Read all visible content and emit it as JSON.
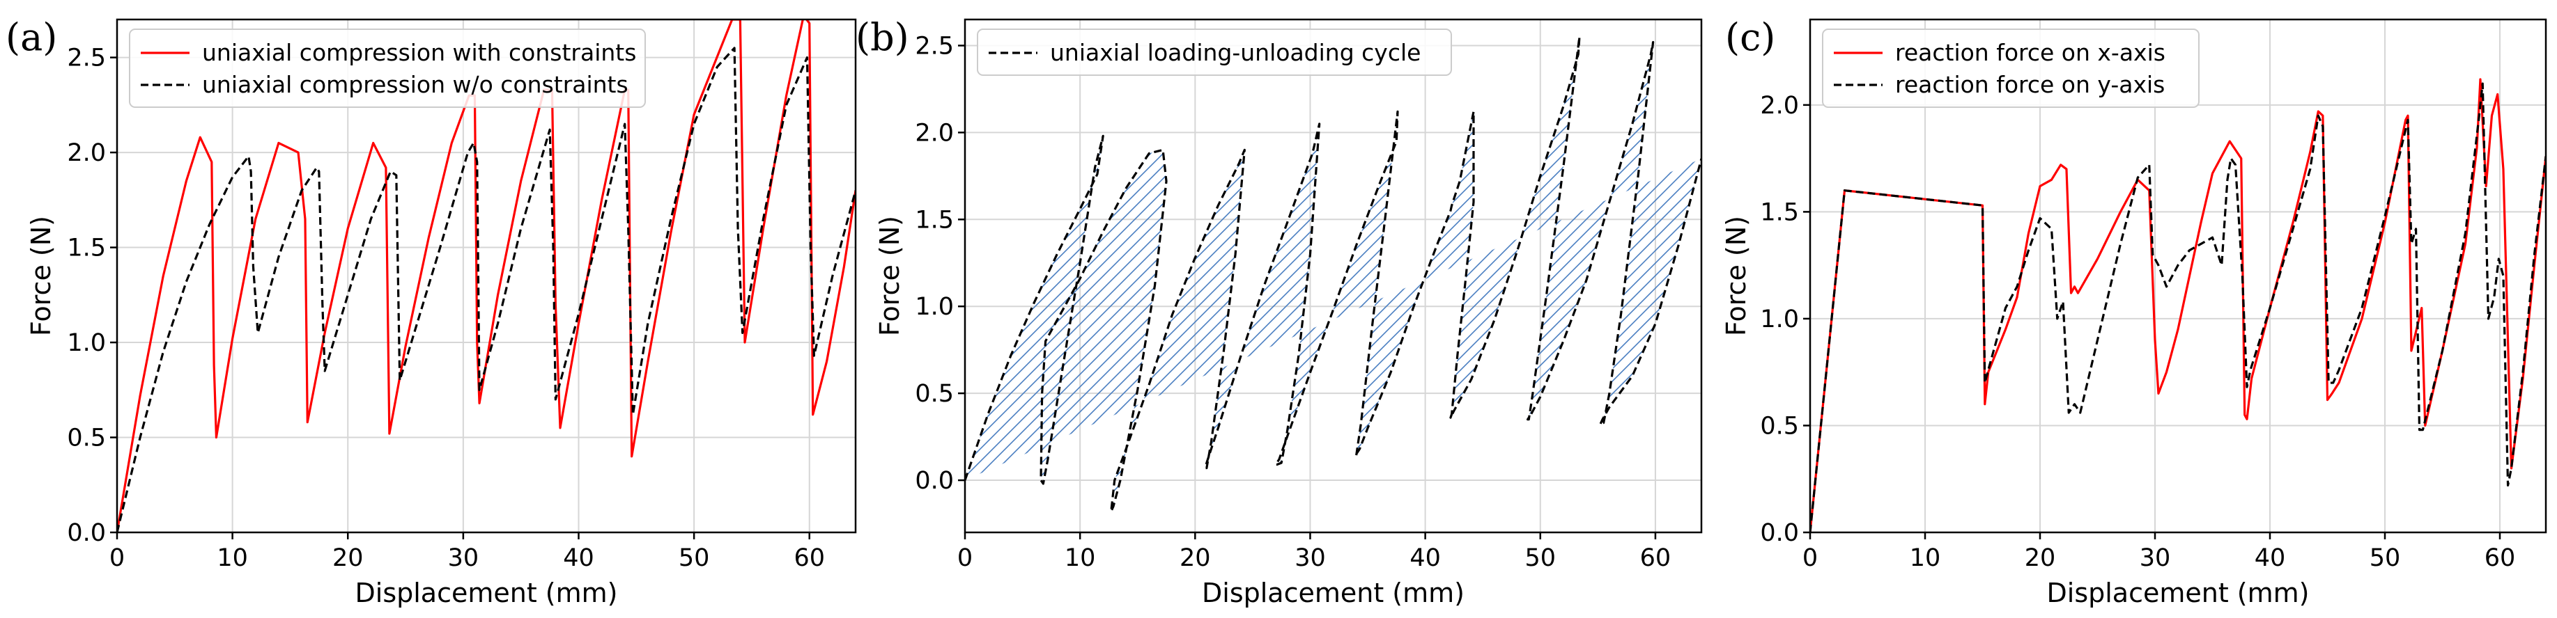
{
  "chart_data": [
    {
      "panel": "(a)",
      "type": "line",
      "xlabel": "Displacement (mm)",
      "ylabel": "Force (N)",
      "xlim": [
        0,
        64
      ],
      "ylim": [
        0,
        2.7
      ],
      "xticks": [
        0,
        10,
        20,
        30,
        40,
        50,
        60
      ],
      "yticks": [
        0.0,
        0.5,
        1.0,
        1.5,
        2.0,
        2.5
      ],
      "grid": true,
      "legend": "top-left",
      "series": [
        {
          "name": "uniaxial compression with constraints",
          "color": "#ff0000",
          "dash": "solid",
          "x": [
            0,
            2,
            4,
            6,
            7.2,
            8.2,
            8.4,
            8.6,
            10,
            12,
            14,
            15.7,
            16.3,
            16.5,
            18,
            20,
            22.2,
            23.3,
            23.6,
            25,
            27,
            29,
            30.5,
            31,
            31.2,
            31.4,
            33,
            35,
            37,
            37.7,
            38.0,
            38.4,
            40,
            42,
            44.0,
            44.3,
            44.6,
            46,
            48,
            50,
            53.3,
            54.0,
            54.4,
            56,
            58,
            59.5,
            60.0,
            60.3,
            61.5,
            63,
            64
          ],
          "y": [
            0.0,
            0.72,
            1.35,
            1.85,
            2.08,
            1.95,
            0.88,
            0.5,
            1.02,
            1.65,
            2.05,
            2.0,
            1.65,
            0.58,
            1.05,
            1.6,
            2.05,
            1.92,
            0.52,
            0.98,
            1.55,
            2.05,
            2.3,
            2.3,
            1.0,
            0.68,
            1.25,
            1.85,
            2.33,
            2.33,
            1.2,
            0.55,
            1.1,
            1.75,
            2.33,
            2.33,
            0.4,
            0.9,
            1.58,
            2.2,
            2.7,
            2.7,
            1.0,
            1.6,
            2.3,
            2.72,
            2.68,
            0.62,
            0.9,
            1.4,
            1.8
          ]
        },
        {
          "name": "uniaxial compression w/o constraints",
          "color": "#000000",
          "dash": "dashed",
          "x": [
            0,
            2,
            4,
            6,
            8,
            10,
            11.4,
            11.6,
            11.8,
            12.2,
            14,
            16,
            17.3,
            17.5,
            17.8,
            18,
            20,
            22,
            23.7,
            24.2,
            24.5,
            26,
            28,
            30.4,
            30.9,
            31.2,
            31.4,
            33,
            35,
            37.5,
            37.8,
            38,
            40,
            42,
            44.0,
            44.3,
            44.7,
            46,
            48,
            50,
            52,
            53.5,
            53.8,
            54.2,
            56,
            58,
            59.8,
            60.1,
            60.4,
            62,
            64
          ],
          "y": [
            0.0,
            0.5,
            0.95,
            1.32,
            1.62,
            1.87,
            1.98,
            1.9,
            1.4,
            1.05,
            1.45,
            1.8,
            1.92,
            1.9,
            1.2,
            0.85,
            1.25,
            1.65,
            1.9,
            1.88,
            0.8,
            1.1,
            1.5,
            2.0,
            2.05,
            1.95,
            0.75,
            1.1,
            1.6,
            2.12,
            1.5,
            0.7,
            1.15,
            1.65,
            2.15,
            1.6,
            0.62,
            1.1,
            1.65,
            2.15,
            2.45,
            2.55,
            1.6,
            1.05,
            1.65,
            2.25,
            2.5,
            1.5,
            0.93,
            1.35,
            1.8
          ]
        }
      ]
    },
    {
      "panel": "(b)",
      "type": "line",
      "xlabel": "Displacement (mm)",
      "ylabel": "Force (N)",
      "xlim": [
        0,
        64
      ],
      "ylim": [
        -0.3,
        2.65
      ],
      "xticks": [
        0,
        10,
        20,
        30,
        40,
        50,
        60
      ],
      "yticks": [
        0.0,
        0.5,
        1.0,
        1.5,
        2.0,
        2.5
      ],
      "grid": true,
      "legend": "top-left",
      "hatch_color": "#4a7fc1",
      "series": [
        {
          "name": "uniaxial loading-unloading cycle",
          "color": "#000000",
          "dash": "dashed",
          "x": [
            0,
            2,
            4,
            6,
            8,
            10,
            11.5,
            12.0,
            11.3,
            10,
            8.5,
            7.2,
            6.8,
            6.6,
            6.7,
            7,
            8,
            10,
            12,
            14,
            16,
            17.2,
            17.5,
            16.5,
            15,
            13.5,
            12.9,
            12.7,
            13,
            14,
            16,
            18,
            20,
            22,
            23.8,
            24.3,
            23.5,
            22.5,
            21.4,
            21,
            20.9,
            21,
            22,
            24,
            26,
            28,
            30.2,
            30.8,
            30,
            29,
            28,
            27.5,
            27.1,
            27,
            27.3,
            28,
            30,
            32,
            34,
            36,
            37.5,
            37.6,
            36.5,
            35.5,
            34.4,
            34,
            33.9,
            34.3,
            35,
            37,
            39,
            41,
            42.2,
            42.3,
            43,
            44.2,
            44.2,
            43.5,
            42.8,
            42.3,
            42.2,
            42.5,
            44,
            46,
            48,
            50,
            52,
            53.3,
            53.4,
            52,
            50.5,
            49.3,
            49.0,
            48.9,
            49.2,
            50,
            52,
            54,
            56,
            58,
            59.6,
            59.8,
            58.5,
            57,
            56,
            55.5,
            55.2,
            55.4,
            56,
            58,
            60,
            62,
            64
          ],
          "y": [
            0.0,
            0.38,
            0.72,
            1.02,
            1.3,
            1.56,
            1.76,
            1.98,
            1.8,
            1.25,
            0.65,
            0.12,
            -0.02,
            0.0,
            0.5,
            0.8,
            0.92,
            1.16,
            1.43,
            1.68,
            1.88,
            1.9,
            1.72,
            1.12,
            0.52,
            0.0,
            -0.15,
            -0.18,
            0.0,
            0.18,
            0.55,
            0.95,
            1.28,
            1.58,
            1.82,
            1.9,
            1.3,
            0.75,
            0.22,
            0.07,
            0.07,
            0.1,
            0.3,
            0.72,
            1.12,
            1.48,
            1.88,
            2.05,
            1.3,
            0.72,
            0.28,
            0.1,
            0.09,
            0.09,
            0.12,
            0.25,
            0.62,
            0.98,
            1.35,
            1.7,
            1.95,
            2.12,
            1.5,
            0.95,
            0.32,
            0.14,
            0.14,
            0.18,
            0.3,
            0.62,
            1.0,
            1.35,
            1.55,
            1.58,
            1.72,
            2.12,
            1.6,
            1.15,
            0.72,
            0.38,
            0.36,
            0.4,
            0.58,
            0.92,
            1.32,
            1.75,
            2.15,
            2.45,
            2.55,
            1.8,
            1.05,
            0.48,
            0.35,
            0.35,
            0.38,
            0.48,
            0.8,
            1.15,
            1.6,
            2.05,
            2.45,
            2.52,
            1.75,
            0.95,
            0.5,
            0.33,
            0.32,
            0.35,
            0.42,
            0.6,
            0.9,
            1.35,
            1.85
          ]
        }
      ]
    },
    {
      "panel": "(c)",
      "type": "line",
      "xlabel": "Displacement (mm)",
      "ylabel": "Force (N)",
      "xlim": [
        0,
        64
      ],
      "ylim": [
        0,
        2.4
      ],
      "xticks": [
        0,
        10,
        20,
        30,
        40,
        50,
        60
      ],
      "yticks": [
        0.0,
        0.5,
        1.0,
        1.5,
        2.0
      ],
      "grid": true,
      "legend": "top-left",
      "series": [
        {
          "name": "reaction force on x-axis",
          "color": "#ff0000",
          "dash": "solid",
          "x": [
            0,
            3,
            15,
            15.2,
            15.5,
            17,
            18,
            19,
            20,
            21,
            21.8,
            22.3,
            22.7,
            23.0,
            23.3,
            25,
            27,
            28.5,
            29.5,
            30.0,
            30.3,
            31,
            32,
            33,
            34,
            35,
            36.5,
            37.5,
            37.8,
            38.0,
            38.4,
            40,
            42,
            43.5,
            44.2,
            44.6,
            45.0,
            45.4,
            46,
            48,
            50,
            51.8,
            52.0,
            52.3,
            53.2,
            53.5,
            55,
            57,
            58.0,
            58.3,
            58.8,
            59.3,
            59.8,
            60.3,
            60.7,
            61,
            62,
            63,
            64
          ],
          "y": [
            0.0,
            1.6,
            1.53,
            0.6,
            0.75,
            0.95,
            1.1,
            1.4,
            1.62,
            1.65,
            1.72,
            1.7,
            1.12,
            1.15,
            1.12,
            1.28,
            1.5,
            1.65,
            1.6,
            0.9,
            0.65,
            0.75,
            0.95,
            1.2,
            1.45,
            1.68,
            1.83,
            1.75,
            0.55,
            0.53,
            0.72,
            1.05,
            1.45,
            1.78,
            1.97,
            1.95,
            0.62,
            0.65,
            0.7,
            1.0,
            1.45,
            1.93,
            1.95,
            0.85,
            1.05,
            0.5,
            0.85,
            1.35,
            1.8,
            2.12,
            1.62,
            1.95,
            2.05,
            1.7,
            0.9,
            0.3,
            0.72,
            1.25,
            1.76
          ]
        },
        {
          "name": "reaction force on y-axis",
          "color": "#000000",
          "dash": "dashed",
          "x": [
            0,
            3,
            15,
            15.2,
            15.6,
            17,
            18,
            19,
            20,
            21,
            21.5,
            22,
            22.5,
            23,
            23.5,
            25,
            27,
            28.5,
            29.5,
            29.8,
            30.3,
            31,
            32,
            33,
            34,
            35,
            35.8,
            36.3,
            36.6,
            37,
            37.6,
            38.0,
            38.3,
            40,
            42,
            43.5,
            44.2,
            44.6,
            45.1,
            45.5,
            46,
            48,
            50,
            52.0,
            52.3,
            52.7,
            53.0,
            53.3,
            55,
            57,
            58.2,
            58.5,
            59,
            59.5,
            59.9,
            60.3,
            60.7,
            61,
            62,
            63,
            64
          ],
          "y": [
            0.0,
            1.6,
            1.53,
            0.7,
            0.78,
            1.05,
            1.15,
            1.32,
            1.47,
            1.42,
            1.0,
            1.08,
            0.56,
            0.6,
            0.56,
            0.9,
            1.35,
            1.66,
            1.72,
            1.3,
            1.25,
            1.15,
            1.25,
            1.32,
            1.35,
            1.38,
            1.25,
            1.65,
            1.75,
            1.72,
            1.2,
            0.68,
            0.76,
            1.05,
            1.42,
            1.7,
            1.95,
            1.9,
            0.7,
            0.7,
            0.76,
            1.05,
            1.48,
            1.93,
            1.35,
            1.42,
            0.48,
            0.48,
            0.85,
            1.4,
            1.95,
            2.1,
            1.0,
            1.1,
            1.28,
            1.2,
            0.22,
            0.3,
            0.75,
            1.3,
            1.76
          ]
        }
      ]
    }
  ]
}
